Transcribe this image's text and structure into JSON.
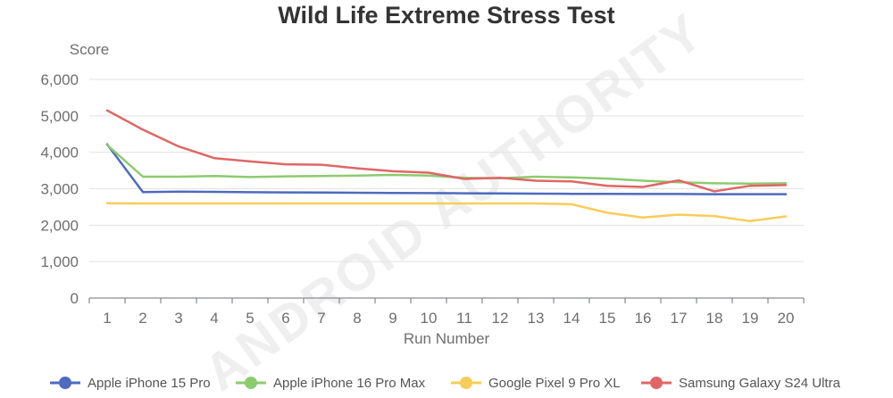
{
  "watermark": "ANDROID AUTHORITY",
  "chart_data": {
    "type": "line",
    "title": "Wild Life Extreme Stress Test",
    "xlabel": "Run Number",
    "ylabel": "Score",
    "x": [
      1,
      2,
      3,
      4,
      5,
      6,
      7,
      8,
      9,
      10,
      11,
      12,
      13,
      14,
      15,
      16,
      17,
      18,
      19,
      20
    ],
    "ylim": [
      0,
      6000
    ],
    "yticks": [
      0,
      1000,
      2000,
      3000,
      4000,
      5000,
      6000
    ],
    "ytick_labels": [
      "0",
      "1,000",
      "2,000",
      "3,000",
      "4,000",
      "5,000",
      "6,000"
    ],
    "grid": true,
    "legend_position": "bottom",
    "series": [
      {
        "name": "Apple iPhone 15 Pro",
        "color": "#4d6bbf",
        "values": [
          4220,
          2910,
          2920,
          2915,
          2905,
          2900,
          2895,
          2890,
          2885,
          2880,
          2875,
          2870,
          2865,
          2860,
          2860,
          2855,
          2855,
          2850,
          2850,
          2850
        ]
      },
      {
        "name": "Apple iPhone 16 Pro Max",
        "color": "#8dcb6f",
        "values": [
          4200,
          3330,
          3330,
          3350,
          3320,
          3340,
          3350,
          3360,
          3380,
          3360,
          3300,
          3290,
          3330,
          3310,
          3280,
          3220,
          3180,
          3150,
          3140,
          3150
        ]
      },
      {
        "name": "Google Pixel 9 Pro XL",
        "color": "#f7cd5a",
        "values": [
          2600,
          2595,
          2595,
          2595,
          2595,
          2595,
          2595,
          2595,
          2595,
          2595,
          2595,
          2595,
          2595,
          2575,
          2340,
          2210,
          2290,
          2250,
          2110,
          2240
        ]
      },
      {
        "name": "Samsung Galaxy S24 Ultra",
        "color": "#e06666",
        "values": [
          5150,
          4620,
          4160,
          3840,
          3750,
          3670,
          3660,
          3560,
          3480,
          3440,
          3270,
          3300,
          3220,
          3200,
          3080,
          3050,
          3230,
          2930,
          3080,
          3100
        ]
      }
    ]
  }
}
